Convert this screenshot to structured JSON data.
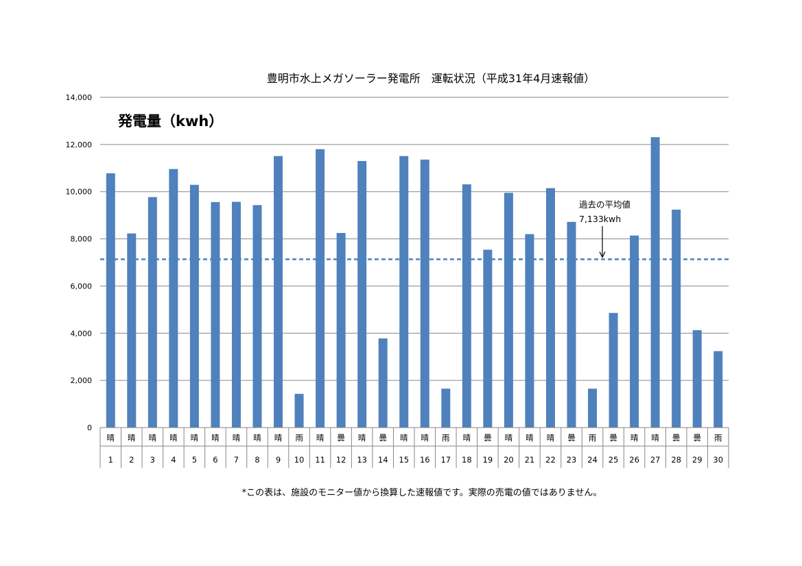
{
  "chart_data": {
    "type": "bar",
    "title": "豊明市水上メガソーラー発電所　運転状況（平成31年4月速報値）",
    "inner_title": "発電量（kwh）",
    "ylim": [
      0,
      14000
    ],
    "y_ticks": [
      0,
      2000,
      4000,
      6000,
      8000,
      10000,
      12000,
      14000
    ],
    "y_tick_labels": [
      "0",
      "2,000",
      "4,000",
      "6,000",
      "8,000",
      "10,000",
      "12,000",
      "14,000"
    ],
    "grid": true,
    "bar_color": "#4f81bd",
    "categories": [
      "1",
      "2",
      "3",
      "4",
      "5",
      "6",
      "7",
      "8",
      "9",
      "10",
      "11",
      "12",
      "13",
      "14",
      "15",
      "16",
      "17",
      "18",
      "19",
      "20",
      "21",
      "22",
      "23",
      "24",
      "25",
      "26",
      "27",
      "28",
      "29",
      "30"
    ],
    "weather": [
      "晴",
      "晴",
      "晴",
      "晴",
      "晴",
      "晴",
      "晴",
      "晴",
      "晴",
      "雨",
      "晴",
      "曇",
      "晴",
      "曇",
      "晴",
      "晴",
      "雨",
      "晴",
      "曇",
      "晴",
      "晴",
      "晴",
      "曇",
      "雨",
      "曇",
      "晴",
      "晴",
      "曇",
      "曇",
      "雨"
    ],
    "values": [
      10780,
      8230,
      9770,
      10960,
      10290,
      9560,
      9570,
      9430,
      11510,
      1430,
      11800,
      8250,
      11300,
      3780,
      11510,
      11360,
      1650,
      10310,
      7540,
      9950,
      8200,
      10150,
      8720,
      1650,
      4860,
      8140,
      12310,
      9240,
      4130,
      3240
    ],
    "reference_line": {
      "value": 7133,
      "color": "#4f81bd",
      "label_line1": "過去の平均値",
      "label_line2": "7,133kwh"
    },
    "footnote": "*この表は、施設のモニター値から換算した速報値です。実際の売電の値ではありません。"
  }
}
